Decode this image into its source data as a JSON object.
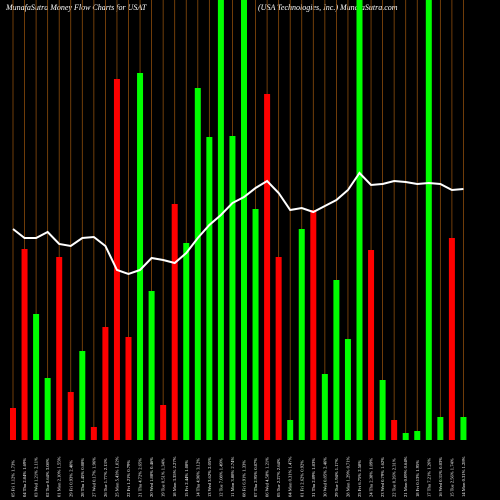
{
  "chart_data": {
    "type": "bar",
    "title": "MunafaSutra  Money Flow  Charts for USAT",
    "subtitle": "(USA Technologies,  Inc.) MunafaSutra.com",
    "categories": [
      "05 Fri 1.12% 1.73%",
      "04 Thu 2.84% 1.69%",
      "03 Wed 1.21% 2.11%",
      "02 Tue 0.64% 3.08%",
      "01 Mon 2.10% 1.55%",
      "29 Fri 0.93% 2.40%",
      "28 Thu 1.45% 0.88%",
      "27 Wed 0.17% 1.96%",
      "26 Tue 1.77% 2.13%",
      "25 Mon 5.43% 1.02%",
      "22 Fri 1.21% 0.79%",
      "21 Thu 4.72% 2.65%",
      "20 Wed 1.88% 0.46%",
      "19 Tue 0.51% 1.34%",
      "18 Mon 3.35% 2.27%",
      "15 Fri 2.44% 1.08%",
      "14 Thu 4.96% 3.12%",
      "13 Wed 3.62% 2.05%",
      "12 Tue 7.08% 1.49%",
      "11 Mon 3.88% 2.74%",
      "08 Fri 6.91% 1.33%",
      "07 Thu 2.95% 0.87%",
      "06 Wed 4.58% 1.21%",
      "05 Tue 2.27% 2.64%",
      "04 Mon 0.31% 1.47%",
      "01 Fri 2.62% 0.92%",
      "31 Thu 2.89% 1.83%",
      "30 Wed 0.85% 2.46%",
      "29 Tue 1.94% 1.17%",
      "28 Mon 1.29% 0.71%",
      "25 Fri 6.75% 2.58%",
      "24 Thu 2.38% 1.09%",
      "23 Wed 0.79% 1.62%",
      "22 Tue 0.26% 2.31%",
      "21 Mon 0.09% 0.64%",
      "18 Fri 0.13% 1.95%",
      "17 Thu 7.21% 1.26%",
      "16 Wed 0.31% 0.83%",
      "15 Tue 2.56% 1.74%",
      "14 Mon 0.31% 1.28%"
    ],
    "values": [
      32,
      191,
      126,
      62,
      183,
      48,
      89,
      13,
      113,
      361,
      103,
      367,
      149,
      35,
      236,
      197,
      352,
      303,
      440,
      304,
      440,
      231,
      346,
      183,
      20,
      211,
      230,
      66,
      160,
      101,
      440,
      190,
      60,
      20,
      7,
      9,
      440,
      23,
      202,
      23
    ],
    "colors": [
      "#ff0000",
      "#ff0000",
      "#00ff00",
      "#00ff00",
      "#ff0000",
      "#ff0000",
      "#00ff00",
      "#ff0000",
      "#ff0000",
      "#ff0000",
      "#ff0000",
      "#00ff00",
      "#00ff00",
      "#ff0000",
      "#ff0000",
      "#00ff00",
      "#00ff00",
      "#00ff00",
      "#00ff00",
      "#00ff00",
      "#00ff00",
      "#00ff00",
      "#ff0000",
      "#ff0000",
      "#00ff00",
      "#00ff00",
      "#ff0000",
      "#00ff00",
      "#00ff00",
      "#00ff00",
      "#00ff00",
      "#ff0000",
      "#00ff00",
      "#ff0000",
      "#00ff00",
      "#00ff00",
      "#00ff00",
      "#00ff00",
      "#ff0000",
      "#00ff00"
    ],
    "line": {
      "color": "#ffffff",
      "values": [
        211,
        202,
        202,
        208,
        196,
        194,
        202,
        203,
        194,
        170,
        166,
        170,
        182,
        180,
        177,
        187,
        202,
        215,
        225,
        237,
        243,
        252,
        259,
        247,
        230,
        232,
        228,
        234,
        240,
        250,
        267,
        255,
        256,
        259,
        258,
        256,
        257,
        256,
        250,
        251
      ]
    },
    "ylim": [
      0,
      440
    ],
    "grid_color": "#8b4c0c"
  }
}
